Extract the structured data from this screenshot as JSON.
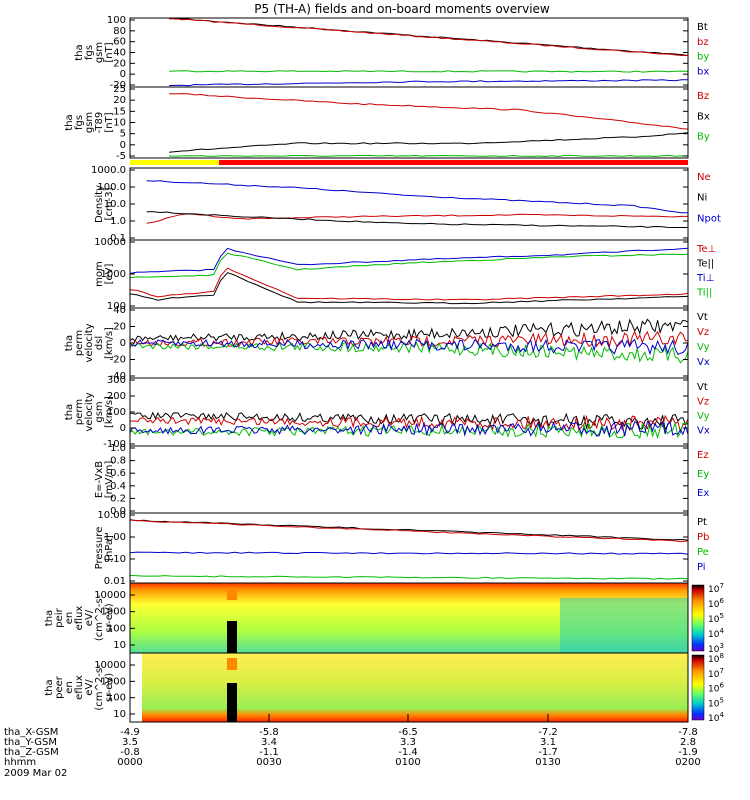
{
  "title": "P5 (TH-A) fields and on-board moments overview",
  "date_label": "2009 Mar 02",
  "chart_data": [
    {
      "type": "line",
      "name": "fgs",
      "ylabel": [
        "tha",
        "fgs",
        "gsm",
        "[nT]"
      ],
      "yticks": [
        "100",
        "80",
        "60",
        "40",
        "20",
        "0",
        "-20"
      ],
      "ylim": [
        -25,
        105
      ],
      "legend": [
        {
          "label": "Bt",
          "color": "#000000"
        },
        {
          "label": "bz",
          "color": "#cc0000"
        },
        {
          "label": "by",
          "color": "#00bb00"
        },
        {
          "label": "bx",
          "color": "#0000cc"
        }
      ],
      "series": [
        {
          "color": "#000000",
          "x": [
            0.07,
            1.0
          ],
          "y": [
            105,
            35
          ]
        },
        {
          "color": "#cc0000",
          "x": [
            0.07,
            1.0
          ],
          "y": [
            104,
            34
          ]
        },
        {
          "color": "#00bb00",
          "x": [
            0.07,
            1.0
          ],
          "y": [
            5,
            4
          ]
        },
        {
          "color": "#0000cc",
          "x": [
            0.07,
            0.5,
            1.0
          ],
          "y": [
            -22,
            -15,
            -12
          ]
        }
      ]
    },
    {
      "type": "line",
      "name": "t89",
      "ylabel": [
        "tha",
        "fgs",
        "gsm",
        "-T89",
        "[nT]"
      ],
      "yticks": [
        "25",
        "20",
        "15",
        "10",
        "5",
        "0",
        "-5"
      ],
      "ylim": [
        -7,
        27
      ],
      "legend": [
        {
          "label": "Bz",
          "color": "#cc0000"
        },
        {
          "label": "Bx",
          "color": "#000000"
        },
        {
          "label": "By",
          "color": "#00bb00"
        }
      ],
      "series": [
        {
          "color": "#cc0000",
          "x": [
            0.07,
            0.4,
            0.7,
            1.0
          ],
          "y": [
            24,
            19,
            16,
            7
          ]
        },
        {
          "color": "#000000",
          "x": [
            0.07,
            0.3,
            0.6,
            0.9,
            1.0
          ],
          "y": [
            -4,
            0,
            0,
            3,
            5
          ]
        },
        {
          "color": "#00bb00",
          "x": [
            0.07,
            1.0
          ],
          "y": [
            -6,
            -6
          ]
        }
      ]
    },
    {
      "type": "line",
      "name": "density",
      "log": true,
      "ylabel": [
        "Density",
        "[cm-3]"
      ],
      "yticks": [
        "1000.0",
        "100.0",
        "10.0",
        "1.0",
        "0.1"
      ],
      "ylim": [
        0.1,
        1000
      ],
      "legend": [
        {
          "label": "Ne",
          "color": "#cc0000"
        },
        {
          "label": "Ni",
          "color": "#000000"
        },
        {
          "label": "Npot",
          "color": "#0000cc"
        }
      ],
      "series": [
        {
          "color": "#0000cc",
          "x": [
            0.03,
            0.3,
            0.5,
            0.7,
            0.9,
            1.0
          ],
          "y": [
            200,
            80,
            30,
            15,
            8,
            3
          ]
        },
        {
          "color": "#cc0000",
          "x": [
            0.03,
            0.1,
            0.2,
            0.4,
            0.7,
            1.0
          ],
          "y": [
            0.8,
            3,
            1.5,
            2,
            2.5,
            2
          ]
        },
        {
          "color": "#000000",
          "x": [
            0.03,
            0.2,
            0.5,
            1.0
          ],
          "y": [
            4,
            2,
            0.8,
            0.5
          ]
        }
      ]
    },
    {
      "type": "line",
      "name": "temperature",
      "log": true,
      "ylabel": [
        "mom",
        "[eV]"
      ],
      "yticks": [
        "10000",
        "1000",
        "100"
      ],
      "ylim": [
        30,
        10000
      ],
      "legend": [
        {
          "label": "Te⊥",
          "color": "#cc0000"
        },
        {
          "label": "Te||",
          "color": "#000000"
        },
        {
          "label": "Ti⊥",
          "color": "#0000cc"
        },
        {
          "label": "Ti||",
          "color": "#00bb00"
        }
      ],
      "series": [
        {
          "color": "#0000cc",
          "x": [
            0.0,
            0.15,
            0.17,
            0.3,
            0.5,
            0.8,
            1.0
          ],
          "y": [
            600,
            800,
            5000,
            1200,
            1800,
            3000,
            5000
          ]
        },
        {
          "color": "#00bb00",
          "x": [
            0.0,
            0.15,
            0.17,
            0.3,
            0.5,
            0.8,
            1.0
          ],
          "y": [
            400,
            500,
            3500,
            800,
            1400,
            2500,
            3000
          ]
        },
        {
          "color": "#cc0000",
          "x": [
            0.0,
            0.05,
            0.1,
            0.15,
            0.17,
            0.3,
            0.6,
            1.0
          ],
          "y": [
            150,
            80,
            100,
            120,
            1000,
            70,
            60,
            100
          ]
        },
        {
          "color": "#000000",
          "x": [
            0.0,
            0.05,
            0.1,
            0.15,
            0.17,
            0.3,
            0.6,
            1.0
          ],
          "y": [
            100,
            60,
            80,
            90,
            700,
            50,
            45,
            80
          ]
        }
      ]
    },
    {
      "type": "line",
      "name": "velocity_perm",
      "noisy": true,
      "ylabel": [
        "tha",
        "perm",
        "velocity",
        "dsl",
        "[km/s]"
      ],
      "yticks": [
        "40",
        "20",
        "0",
        "-20",
        "-40"
      ],
      "ylim": [
        -40,
        40
      ],
      "legend": [
        {
          "label": "Vt",
          "color": "#000000"
        },
        {
          "label": "Vz",
          "color": "#cc0000"
        },
        {
          "label": "Vy",
          "color": "#00bb00"
        },
        {
          "label": "Vx",
          "color": "#0000cc"
        }
      ],
      "series": [
        {
          "color": "#000000",
          "x": [
            0.0,
            0.5,
            1.0
          ],
          "y": [
            5,
            10,
            20
          ]
        },
        {
          "color": "#cc0000",
          "x": [
            0.0,
            0.5,
            1.0
          ],
          "y": [
            0,
            2,
            5
          ]
        },
        {
          "color": "#00bb00",
          "x": [
            0.0,
            0.5,
            1.0
          ],
          "y": [
            -3,
            -5,
            -15
          ]
        },
        {
          "color": "#0000cc",
          "x": [
            0.0,
            0.5,
            1.0
          ],
          "y": [
            0,
            -2,
            -5
          ]
        }
      ]
    },
    {
      "type": "line",
      "name": "velocity_gsm",
      "noisy": true,
      "ylabel": [
        "tha",
        "perm",
        "velocity",
        "gsm",
        "[km/s]"
      ],
      "yticks": [
        "300",
        "200",
        "100",
        "0",
        "-100"
      ],
      "ylim": [
        -100,
        300
      ],
      "legend": [
        {
          "label": "Vt",
          "color": "#000000"
        },
        {
          "label": "Vz",
          "color": "#cc0000"
        },
        {
          "label": "Vy",
          "color": "#00bb00"
        },
        {
          "label": "Vx",
          "color": "#0000cc"
        }
      ],
      "series": [
        {
          "color": "#000000",
          "x": [
            0.0,
            0.5,
            1.0
          ],
          "y": [
            80,
            60,
            40
          ]
        },
        {
          "color": "#cc0000",
          "x": [
            0.0,
            0.5,
            1.0
          ],
          "y": [
            50,
            40,
            30
          ]
        },
        {
          "color": "#00bb00",
          "x": [
            0.0,
            0.5,
            1.0
          ],
          "y": [
            -20,
            -10,
            -10
          ]
        },
        {
          "color": "#0000cc",
          "x": [
            0.0,
            0.5,
            1.0
          ],
          "y": [
            -10,
            0,
            0
          ]
        }
      ]
    },
    {
      "type": "line",
      "name": "efield",
      "ylabel": [
        "E=-VxB",
        "[mV/m]"
      ],
      "yticks": [
        "1.0",
        "0.8",
        "0.6",
        "0.4",
        "0.2",
        "0.0"
      ],
      "ylim": [
        0,
        1
      ],
      "legend": [
        {
          "label": "Ez",
          "color": "#cc0000"
        },
        {
          "label": "Ey",
          "color": "#00bb00"
        },
        {
          "label": "Ex",
          "color": "#0000cc"
        }
      ],
      "series": []
    },
    {
      "type": "line",
      "name": "pressure",
      "log": true,
      "ylabel": [
        "Pressure",
        "[nPa]"
      ],
      "yticks": [
        "10.00",
        "1.00",
        "0.10",
        "0.01"
      ],
      "ylim": [
        0.01,
        10
      ],
      "legend": [
        {
          "label": "Pt",
          "color": "#000000"
        },
        {
          "label": "Pb",
          "color": "#cc0000"
        },
        {
          "label": "Pe",
          "color": "#00bb00"
        },
        {
          "label": "Pi",
          "color": "#0000cc"
        }
      ],
      "series": [
        {
          "color": "#000000",
          "x": [
            0.0,
            1.0
          ],
          "y": [
            5,
            0.7
          ]
        },
        {
          "color": "#cc0000",
          "x": [
            0.0,
            1.0
          ],
          "y": [
            4.8,
            0.6
          ]
        },
        {
          "color": "#0000cc",
          "x": [
            0.0,
            1.0
          ],
          "y": [
            0.2,
            0.18
          ]
        },
        {
          "color": "#00bb00",
          "x": [
            0.0,
            1.0
          ],
          "y": [
            0.02,
            0.015
          ]
        }
      ]
    },
    {
      "type": "heatmap",
      "name": "ion_efflux",
      "ylabel": [
        "tha",
        "peir",
        "en",
        "eflux",
        "eV/",
        "(cm^2-s-",
        "sr-eV)"
      ],
      "yticks": [
        "10000",
        "1000",
        "100",
        "10"
      ],
      "colorbar": [
        "10^7",
        "10^6",
        "10^5",
        "10^4",
        "10^3"
      ]
    },
    {
      "type": "heatmap",
      "name": "electron_efflux",
      "ylabel": [
        "tha",
        "peer",
        "en",
        "eflux",
        "eV/",
        "(cm^2-s-",
        "sr-eV)"
      ],
      "yticks": [
        "10000",
        "1000",
        "100",
        "10"
      ],
      "colorbar": [
        "10^8",
        "10^7",
        "10^6",
        "10^5",
        "10^4"
      ]
    }
  ],
  "xaxis": {
    "rows": [
      {
        "label": "tha_X-GSM",
        "values": [
          "-4.9",
          "-5.8",
          "-6.5",
          "-7.2",
          "-7.8"
        ]
      },
      {
        "label": "tha_Y-GSM",
        "values": [
          "3.5",
          "3.4",
          "3.3",
          "3.1",
          "2.8"
        ]
      },
      {
        "label": "tha_Z-GSM",
        "values": [
          "-0.8",
          "-1.1",
          "-1.4",
          "-1.7",
          "-1.9"
        ]
      },
      {
        "label": "hhmm",
        "values": [
          "0000",
          "0030",
          "0100",
          "0130",
          "0200"
        ]
      }
    ]
  },
  "colors": {
    "yellow": "#ffff00",
    "red": "#ff0000",
    "bg": "#ffffff"
  }
}
